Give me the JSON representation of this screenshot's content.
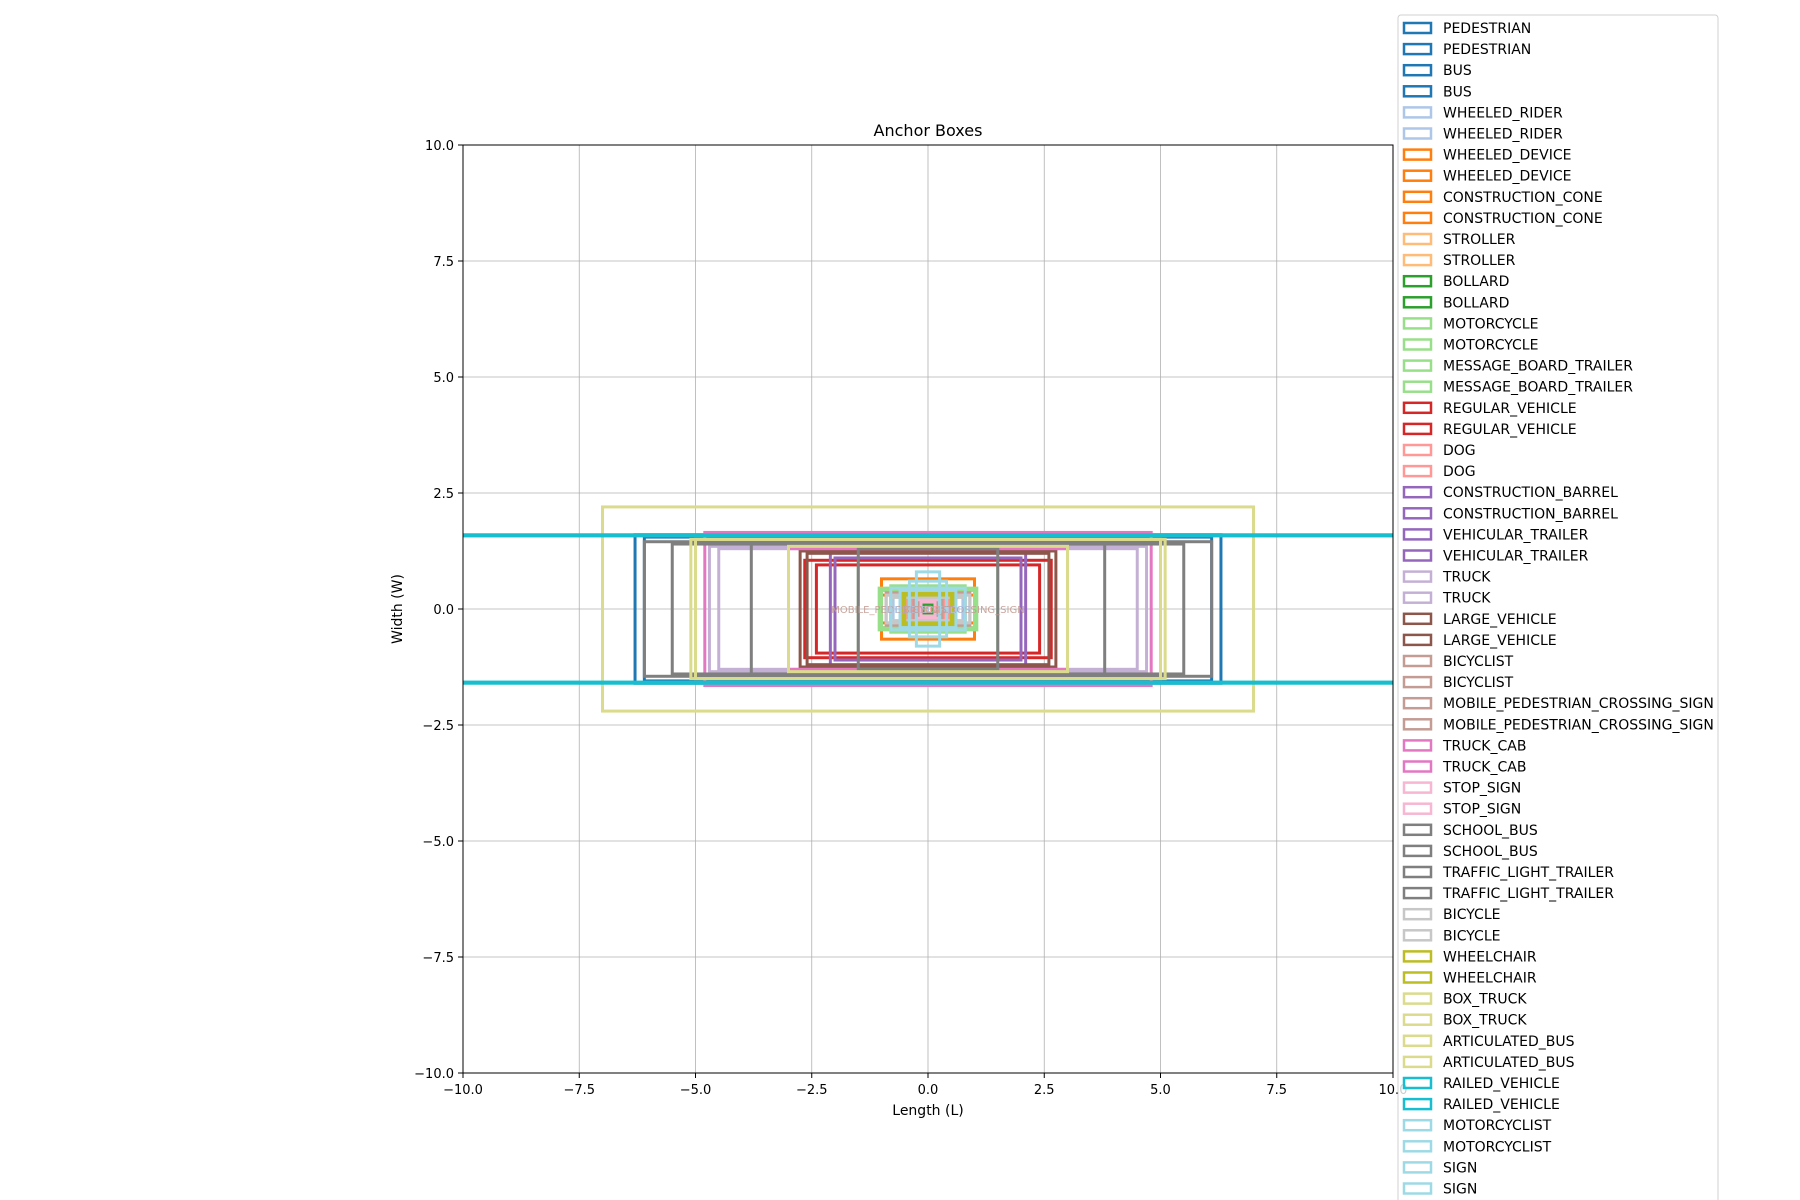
{
  "chart_data": {
    "type": "anchor-boxes",
    "title": "Anchor Boxes",
    "xlabel": "Length (L)",
    "ylabel": "Width (W)",
    "xlim": [
      -10,
      10
    ],
    "ylim": [
      -10,
      10
    ],
    "xticks": [
      "−10.0",
      "−7.5",
      "−5.0",
      "−2.5",
      "0.0",
      "2.5",
      "5.0",
      "7.5",
      "10.0"
    ],
    "yticks": [
      "−10.0",
      "−7.5",
      "−5.0",
      "−2.5",
      "0.0",
      "2.5",
      "5.0",
      "7.5",
      "10.0"
    ],
    "xtick_values": [
      -10,
      -7.5,
      -5,
      -2.5,
      0,
      2.5,
      5,
      7.5,
      10
    ],
    "ytick_values": [
      -10,
      -7.5,
      -5,
      -2.5,
      0,
      2.5,
      5,
      7.5,
      10
    ],
    "grid": true,
    "legend_position": "right",
    "center_labels": [
      "MOBILE_PEDESTRIAN_CROSSING_SIGN",
      "DOG",
      "WHEELED_RIDER",
      "BICYCLIST"
    ],
    "series": [
      {
        "name": "PEDESTRIAN",
        "color": "#1f77b4",
        "boxes": [
          [
            0.4,
            0.4
          ],
          [
            0.5,
            0.5
          ]
        ]
      },
      {
        "name": "BUS",
        "color": "#1f77b4",
        "boxes": [
          [
            12.6,
            3.2
          ],
          [
            12.2,
            3.1
          ]
        ]
      },
      {
        "name": "WHEELED_RIDER",
        "color": "#aec7e8",
        "boxes": [
          [
            1.2,
            0.7
          ],
          [
            1.5,
            0.6
          ]
        ]
      },
      {
        "name": "WHEELED_DEVICE",
        "color": "#ff7f0e",
        "boxes": [
          [
            0.9,
            0.5
          ],
          [
            1.1,
            0.6
          ]
        ]
      },
      {
        "name": "CONSTRUCTION_CONE",
        "color": "#ff7f0e",
        "boxes": [
          [
            2.0,
            1.3
          ],
          [
            2.0,
            0.6
          ]
        ]
      },
      {
        "name": "STROLLER",
        "color": "#ffbb78",
        "boxes": [
          [
            1.0,
            0.6
          ],
          [
            0.8,
            0.5
          ]
        ]
      },
      {
        "name": "BOLLARD",
        "color": "#2ca02c",
        "boxes": [
          [
            0.3,
            0.3
          ],
          [
            0.2,
            0.2
          ]
        ]
      },
      {
        "name": "MOTORCYCLE",
        "color": "#98df8a",
        "boxes": [
          [
            2.1,
            0.9
          ],
          [
            2.0,
            0.8
          ]
        ]
      },
      {
        "name": "MESSAGE_BOARD_TRAILER",
        "color": "#98df8a",
        "boxes": [
          [
            3.0,
            2.2
          ],
          [
            1.6,
            1.0
          ]
        ]
      },
      {
        "name": "REGULAR_VEHICLE",
        "color": "#d62728",
        "boxes": [
          [
            5.3,
            2.1
          ],
          [
            4.8,
            1.9
          ]
        ]
      },
      {
        "name": "DOG",
        "color": "#ff9896",
        "boxes": [
          [
            0.9,
            0.4
          ],
          [
            0.7,
            0.3
          ]
        ]
      },
      {
        "name": "CONSTRUCTION_BARREL",
        "color": "#9467bd",
        "boxes": [
          [
            0.6,
            0.6
          ],
          [
            0.5,
            0.5
          ]
        ]
      },
      {
        "name": "VEHICULAR_TRAILER",
        "color": "#9467bd",
        "boxes": [
          [
            4.2,
            2.6
          ],
          [
            4.0,
            2.2
          ]
        ]
      },
      {
        "name": "TRUCK",
        "color": "#c5b0d5",
        "boxes": [
          [
            9.4,
            2.7
          ],
          [
            9.0,
            2.6
          ]
        ]
      },
      {
        "name": "LARGE_VEHICLE",
        "color": "#8c564b",
        "boxes": [
          [
            5.5,
            2.5
          ],
          [
            5.2,
            2.4
          ]
        ]
      },
      {
        "name": "BICYCLIST",
        "color": "#c49c94",
        "boxes": [
          [
            1.8,
            0.7
          ],
          [
            1.6,
            0.6
          ]
        ]
      },
      {
        "name": "MOBILE_PEDESTRIAN_CROSSING_SIGN",
        "color": "#c49c94",
        "boxes": [
          [
            0.6,
            0.5
          ],
          [
            0.4,
            0.4
          ]
        ]
      },
      {
        "name": "TRUCK_CAB",
        "color": "#e377c2",
        "boxes": [
          [
            9.6,
            3.3
          ],
          [
            6.0,
            2.6
          ]
        ]
      },
      {
        "name": "STOP_SIGN",
        "color": "#f7b6d2",
        "boxes": [
          [
            0.5,
            0.4
          ],
          [
            0.3,
            0.3
          ]
        ]
      },
      {
        "name": "SCHOOL_BUS",
        "color": "#7f7f7f",
        "boxes": [
          [
            12.2,
            2.9
          ],
          [
            11.0,
            2.8
          ]
        ]
      },
      {
        "name": "TRAFFIC_LIGHT_TRAILER",
        "color": "#7f7f7f",
        "boxes": [
          [
            7.6,
            2.8
          ],
          [
            3.0,
            2.6
          ]
        ]
      },
      {
        "name": "BICYCLE",
        "color": "#c7c7c7",
        "boxes": [
          [
            1.8,
            0.6
          ],
          [
            1.6,
            0.5
          ]
        ]
      },
      {
        "name": "WHEELCHAIR",
        "color": "#bcbd22",
        "boxes": [
          [
            1.1,
            0.7
          ],
          [
            1.0,
            0.6
          ]
        ]
      },
      {
        "name": "BOX_TRUCK",
        "color": "#dbdb8d",
        "boxes": [
          [
            10.2,
            3.0
          ],
          [
            6.0,
            2.7
          ]
        ]
      },
      {
        "name": "ARTICULATED_BUS",
        "color": "#dbdb8d",
        "boxes": [
          [
            14.0,
            4.4
          ],
          [
            10.0,
            3.0
          ]
        ]
      },
      {
        "name": "RAILED_VEHICLE",
        "color": "#17becf",
        "boxes": [
          [
            40.0,
            3.2
          ],
          [
            40.0,
            3.15
          ]
        ]
      },
      {
        "name": "MOTORCYCLIST",
        "color": "#9edae5",
        "boxes": [
          [
            1.6,
            0.9
          ],
          [
            1.2,
            0.8
          ]
        ]
      },
      {
        "name": "SIGN",
        "color": "#9edae5",
        "boxes": [
          [
            0.5,
            1.6
          ],
          [
            0.8,
            1.2
          ]
        ]
      }
    ]
  }
}
